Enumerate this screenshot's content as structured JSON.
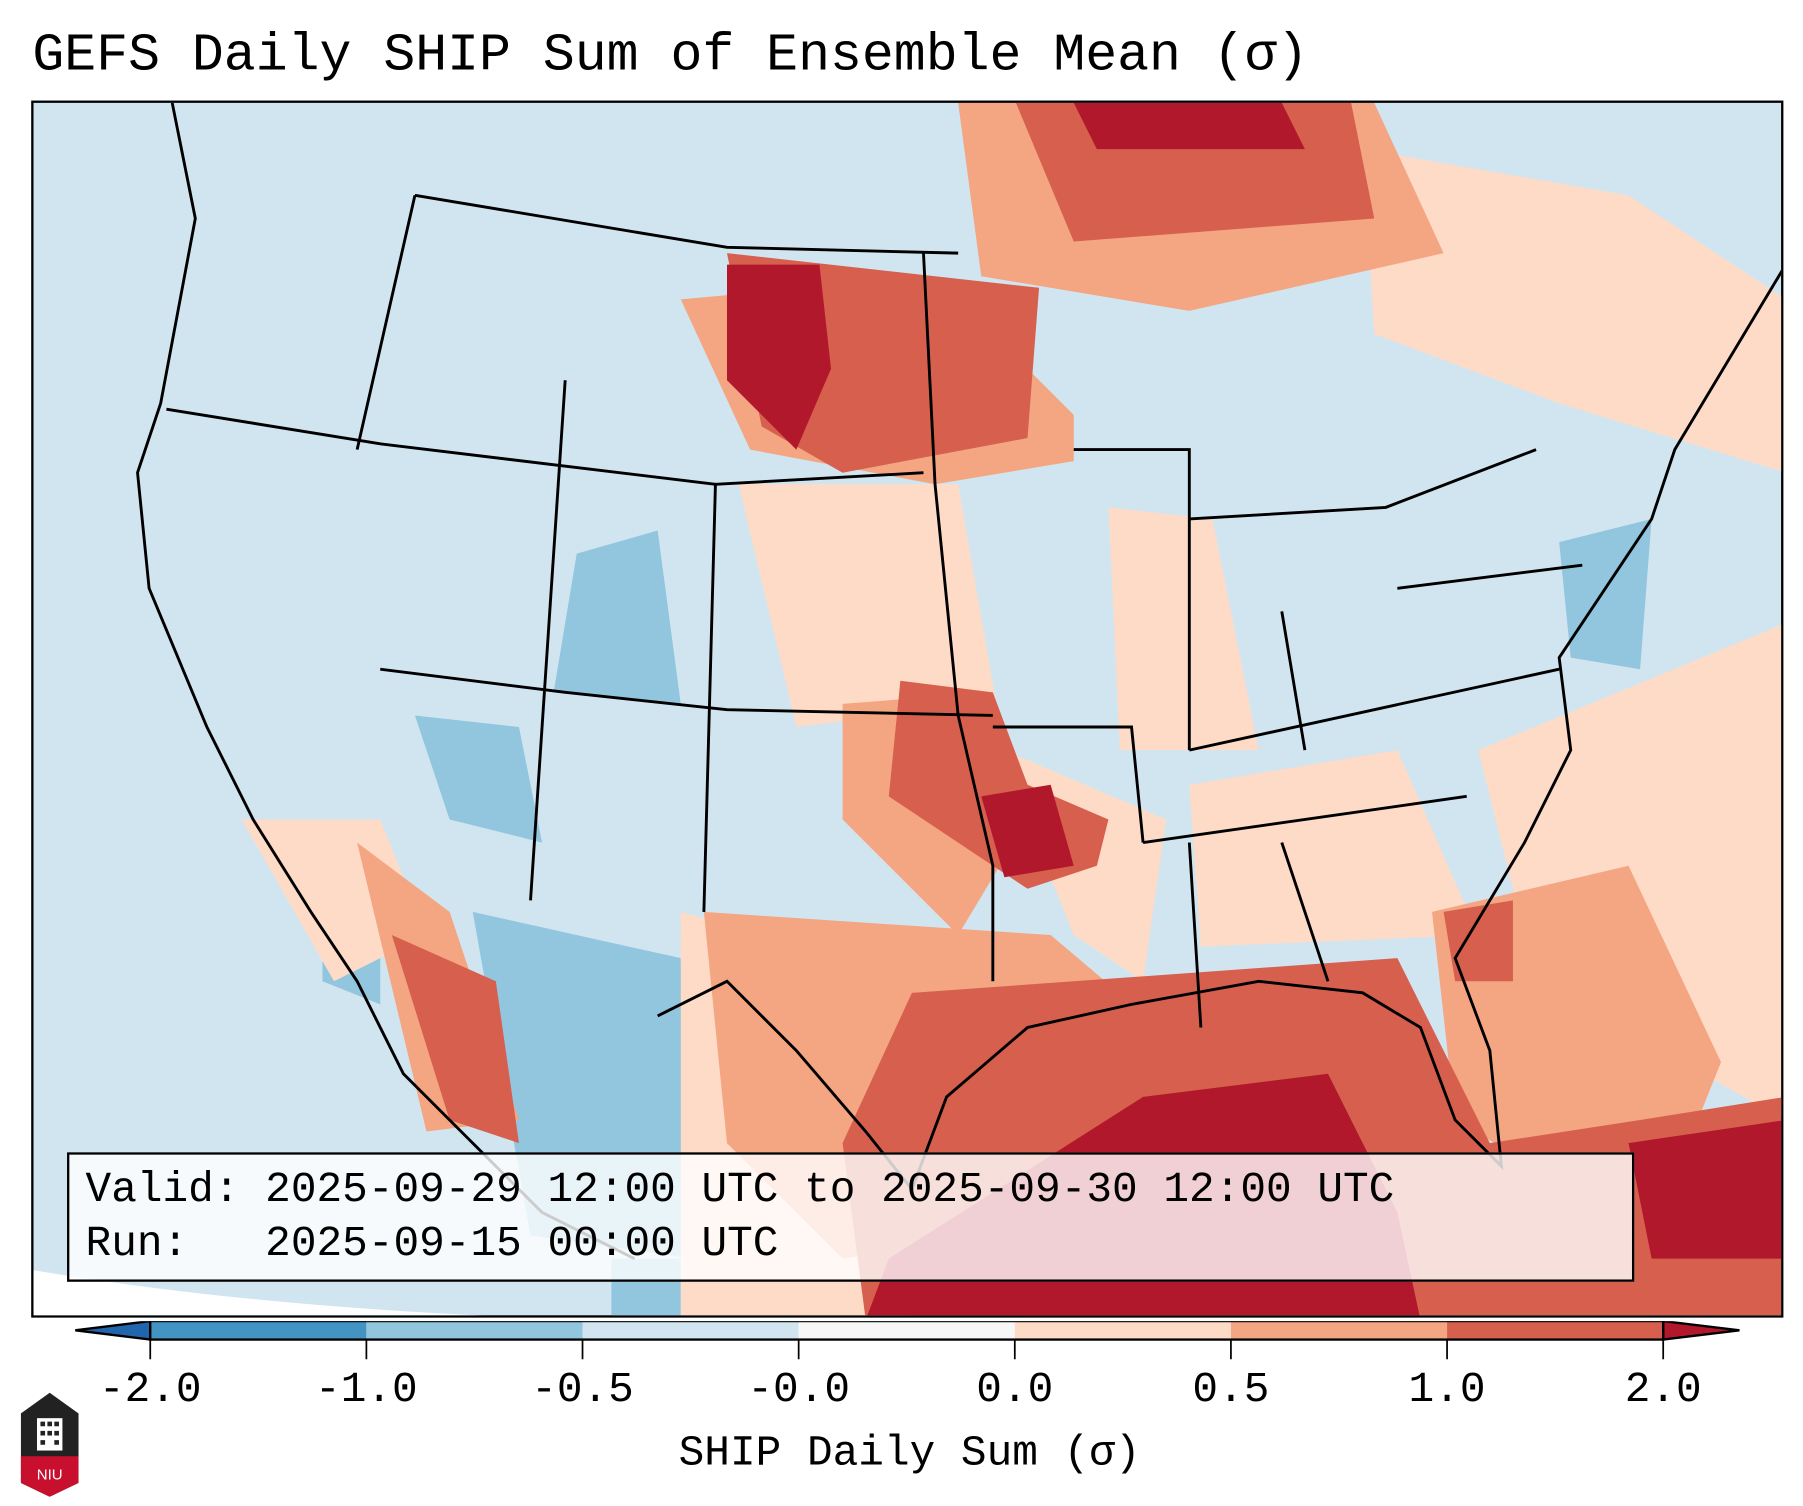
{
  "title": "GEFS Daily SHIP Sum of Ensemble Mean (σ)",
  "annotation": {
    "valid_line": "Valid: 2025-09-29 12:00 UTC to 2025-09-30 12:00 UTC",
    "run_line": "Run:   2025-09-15 00:00 UTC"
  },
  "colorbar": {
    "label": "SHIP Daily Sum (σ)",
    "ticks": [
      "-2.0",
      "-1.0",
      "-0.5",
      "-0.0",
      "0.0",
      "0.5",
      "1.0",
      "2.0"
    ],
    "colors": [
      "#2166ac",
      "#4393c3",
      "#92c5de",
      "#d1e5f0",
      "#f7f7f7",
      "#fddbc7",
      "#f4a582",
      "#d6604d",
      "#b2182b"
    ]
  },
  "logo": {
    "text": "NIU"
  }
}
